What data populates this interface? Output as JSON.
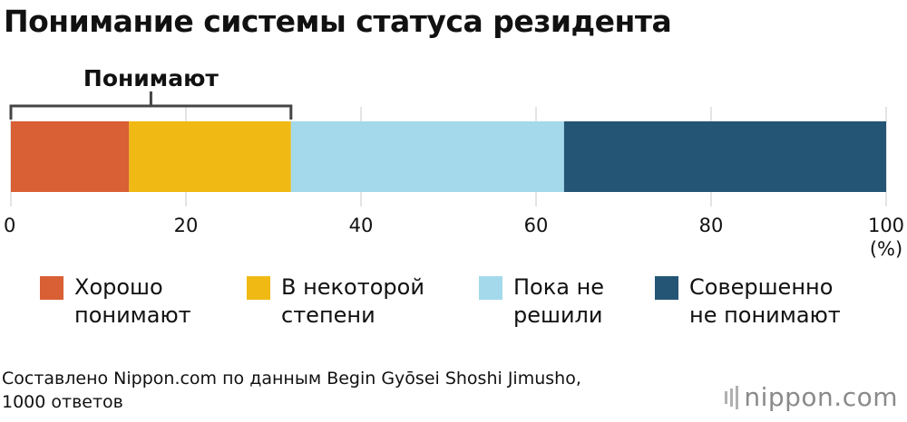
{
  "title": "Понимание системы статуса резидента",
  "chart_data": {
    "type": "bar",
    "orientation": "horizontal-stacked",
    "unit": "(%)",
    "xlim": [
      0,
      100
    ],
    "ticks": [
      0,
      20,
      40,
      60,
      80,
      100
    ],
    "grid": true,
    "segments": [
      {
        "name": "Хорошо\nпонимают",
        "value": 13.5,
        "color": "#d95f34"
      },
      {
        "name": "В некоторой\nстепени",
        "value": 18.5,
        "color": "#f0b913"
      },
      {
        "name": "Пока не\nрешили",
        "value": 31.2,
        "color": "#a3d9ea"
      },
      {
        "name": "Совершенно\nне понимают",
        "value": 36.8,
        "color": "#245574"
      }
    ],
    "bracket": {
      "label": "Понимают",
      "from": 0,
      "to": 32
    }
  },
  "source": "Составлено Nippon.com по данным Begin Gyōsei Shoshi Jimusho,\n1000 ответов",
  "logo": {
    "text": "nippon",
    "suffix": ".com"
  }
}
